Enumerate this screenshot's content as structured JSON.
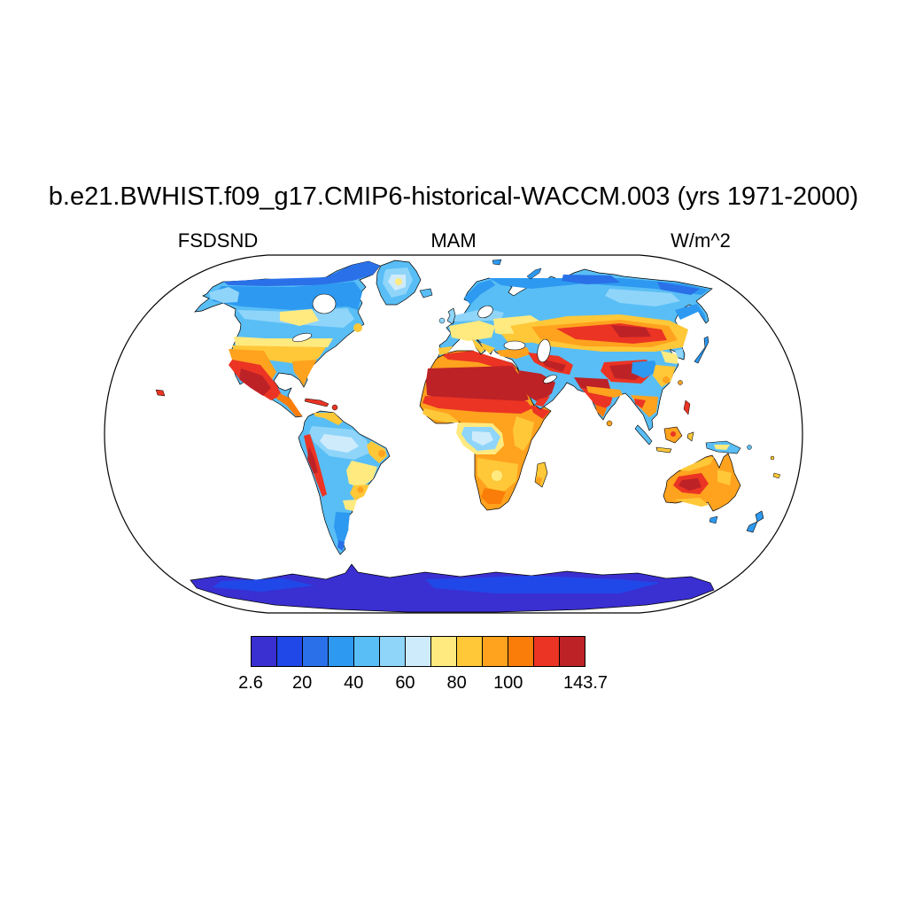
{
  "title": "b.e21.BWHIST.f09_g17.CMIP6-historical-WACCM.003 (yrs 1971-2000)",
  "labels": {
    "left": "FSDSND",
    "center": "MAM",
    "right": "W/m^2"
  },
  "chart_data": {
    "type": "heatmap",
    "subtype": "filled-contour-global-map",
    "projection": "robinson",
    "variable": "FSDSND",
    "season": "MAM",
    "units": "W/m^2",
    "title": "b.e21.BWHIST.f09_g17.CMIP6-historical-WACCM.003 (yrs 1971-2000)",
    "value_min": 2.6,
    "value_max": 143.7,
    "contour_levels": [
      10,
      20,
      30,
      40,
      50,
      60,
      70,
      80,
      90,
      100,
      110,
      120
    ],
    "ocean_masked": true,
    "grid": false,
    "colorbar": {
      "orientation": "horizontal",
      "colors": [
        "#3A2FD1",
        "#2048E8",
        "#2A70E8",
        "#2D99F0",
        "#59BEF5",
        "#8FD5FA",
        "#CEEBFC",
        "#FFEA80",
        "#FFC838",
        "#FFA21E",
        "#FA7D09",
        "#EB3423",
        "#BD2227"
      ],
      "bin_edges": [
        2.6,
        10,
        20,
        30,
        40,
        50,
        60,
        70,
        80,
        90,
        100,
        110,
        120,
        143.7
      ],
      "ticks": [
        {
          "label": "2.6",
          "pos": 0
        },
        {
          "label": "20",
          "pos": 0.1538
        },
        {
          "label": "40",
          "pos": 0.3077
        },
        {
          "label": "60",
          "pos": 0.4615
        },
        {
          "label": "80",
          "pos": 0.6154
        },
        {
          "label": "100",
          "pos": 0.7692
        },
        {
          "label": "143.7",
          "pos": 1
        }
      ]
    },
    "regions": [
      {
        "region": "Sahara and North Africa",
        "value_w_m2": "120-143.7"
      },
      {
        "region": "Arabian Peninsula / Iran / Pakistan / NW India",
        "value_w_m2": "110-143.7"
      },
      {
        "region": "Tibetan Plateau and Mongolia (Gobi)",
        "value_w_m2": "110-143.7"
      },
      {
        "region": "Central Asia mid-latitude belt (Kazakhstan-Manchuria)",
        "value_w_m2": "90-120"
      },
      {
        "region": "Southwest US and northern Mexico",
        "value_w_m2": "100-143.7"
      },
      {
        "region": "Central / eastern United States",
        "value_w_m2": "80-100"
      },
      {
        "region": "Southern Canada / northern US plains",
        "value_w_m2": "70-90"
      },
      {
        "region": "Central Canada and central Siberia",
        "value_w_m2": "40-60"
      },
      {
        "region": "Arctic coasts (N Canada, N Siberia)",
        "value_w_m2": "20-40"
      },
      {
        "region": "Greenland interior",
        "value_w_m2": "50-80"
      },
      {
        "region": "Northern Europe / UK / Scandinavia",
        "value_w_m2": "40-70"
      },
      {
        "region": "Mediterranean Europe and Turkey",
        "value_w_m2": "80-100"
      },
      {
        "region": "Amazon basin",
        "value_w_m2": "40-70"
      },
      {
        "region": "Andes ridge",
        "value_w_m2": "110-130"
      },
      {
        "region": "NE and southern Brazil",
        "value_w_m2": "80-100"
      },
      {
        "region": "Patagonia",
        "value_w_m2": "20-40"
      },
      {
        "region": "Congo basin (equatorial Africa)",
        "value_w_m2": "50-70"
      },
      {
        "region": "East and southern Africa",
        "value_w_m2": "80-110"
      },
      {
        "region": "Southeast Asia / Indochina",
        "value_w_m2": "90-120"
      },
      {
        "region": "Maritime continent (Indonesia)",
        "value_w_m2": "40-100 (mixed)"
      },
      {
        "region": "Australian interior (west-central core)",
        "value_w_m2": "100-143.7"
      },
      {
        "region": "Korea / Japan / New Zealand / Tasmania",
        "value_w_m2": "30-50"
      },
      {
        "region": "Antarctica",
        "value_w_m2": "2.6-20"
      }
    ]
  }
}
